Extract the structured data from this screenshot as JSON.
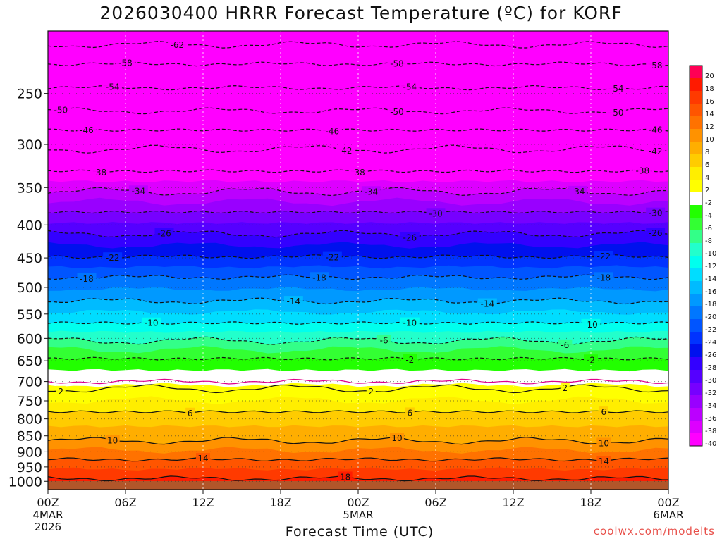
{
  "chart_data": {
    "type": "heatmap",
    "title": "2026030400 HRRR Forecast Temperature (ºC) for KORF",
    "xlabel": "Forecast Time (UTC)",
    "ylabel": "",
    "credit": "coolwx.com/modelts",
    "x_ticks": [
      {
        "hour": 0,
        "label": "00Z",
        "sub": [
          "4MAR",
          "2026"
        ]
      },
      {
        "hour": 6,
        "label": "06Z",
        "sub": []
      },
      {
        "hour": 12,
        "label": "12Z",
        "sub": []
      },
      {
        "hour": 18,
        "label": "18Z",
        "sub": []
      },
      {
        "hour": 24,
        "label": "00Z",
        "sub": [
          "5MAR"
        ]
      },
      {
        "hour": 30,
        "label": "06Z",
        "sub": []
      },
      {
        "hour": 36,
        "label": "12Z",
        "sub": []
      },
      {
        "hour": 42,
        "label": "18Z",
        "sub": []
      },
      {
        "hour": 48,
        "label": "00Z",
        "sub": [
          "6MAR"
        ]
      }
    ],
    "xlim_hours": [
      0,
      48
    ],
    "y_ticks_hpa": [
      250,
      300,
      350,
      400,
      450,
      500,
      550,
      600,
      650,
      700,
      750,
      800,
      850,
      900,
      950,
      1000
    ],
    "ylim_hpa": [
      200,
      1030
    ],
    "y_scale": "log-pressure (inverted)",
    "grid": "dotted",
    "colorbar": {
      "bins": [
        {
          "label": "20",
          "color": "#ff0055"
        },
        {
          "label": "18",
          "color": "#ff1a00"
        },
        {
          "label": "16",
          "color": "#ff3a00"
        },
        {
          "label": "14",
          "color": "#ff5500"
        },
        {
          "label": "12",
          "color": "#ff7200"
        },
        {
          "label": "10",
          "color": "#ff9200"
        },
        {
          "label": "8",
          "color": "#ffae00"
        },
        {
          "label": "6",
          "color": "#ffcc00"
        },
        {
          "label": "4",
          "color": "#ffee00"
        },
        {
          "label": "2",
          "color": "#ffff00"
        },
        {
          "label": "-2",
          "color": "#ffffff"
        },
        {
          "label": "-4",
          "color": "#22ff00"
        },
        {
          "label": "-6",
          "color": "#33ff33"
        },
        {
          "label": "-8",
          "color": "#33ff88"
        },
        {
          "label": "-10",
          "color": "#22ffcc"
        },
        {
          "label": "-12",
          "color": "#00ffee"
        },
        {
          "label": "-14",
          "color": "#00ddff"
        },
        {
          "label": "-16",
          "color": "#00bbff"
        },
        {
          "label": "-18",
          "color": "#0099ff"
        },
        {
          "label": "-20",
          "color": "#0077ff"
        },
        {
          "label": "-22",
          "color": "#0055ff"
        },
        {
          "label": "-24",
          "color": "#0033ff"
        },
        {
          "label": "-26",
          "color": "#0011ee"
        },
        {
          "label": "-28",
          "color": "#3300ff"
        },
        {
          "label": "-30",
          "color": "#5500ff"
        },
        {
          "label": "-32",
          "color": "#7700ff"
        },
        {
          "label": "-34",
          "color": "#9900ff"
        },
        {
          "label": "-36",
          "color": "#bb00ff"
        },
        {
          "label": "-38",
          "color": "#dd00ff"
        },
        {
          "label": "-40",
          "color": "#ff00ff"
        }
      ]
    },
    "contours": [
      {
        "value": -62,
        "label": "-62",
        "style": "dashed",
        "pressure_hpa": 210,
        "label_hours": [
          10
        ]
      },
      {
        "value": -58,
        "label": "-58",
        "style": "dashed",
        "pressure_hpa": 225,
        "label_hours": [
          6,
          27,
          47
        ]
      },
      {
        "value": -54,
        "label": "-54",
        "style": "dashed",
        "pressure_hpa": 245,
        "label_hours": [
          5,
          28,
          44
        ]
      },
      {
        "value": -50,
        "label": "-50",
        "style": "dashed",
        "pressure_hpa": 266,
        "label_hours": [
          1,
          27,
          44
        ]
      },
      {
        "value": -46,
        "label": "-46",
        "style": "dashed",
        "pressure_hpa": 285,
        "label_hours": [
          3,
          22,
          47
        ]
      },
      {
        "value": -42,
        "label": "-42",
        "style": "dashed",
        "pressure_hpa": 305,
        "label_hours": [
          23,
          47
        ]
      },
      {
        "value": -38,
        "label": "-38",
        "style": "dashed",
        "pressure_hpa": 330,
        "label_hours": [
          4,
          24,
          46
        ]
      },
      {
        "value": -34,
        "label": "-34",
        "style": "dashed",
        "pressure_hpa": 355,
        "label_hours": [
          7,
          25,
          41
        ]
      },
      {
        "value": -30,
        "label": "-30",
        "style": "dashed",
        "pressure_hpa": 382,
        "label_hours": [
          30,
          47
        ]
      },
      {
        "value": -26,
        "label": "-26",
        "style": "dashed",
        "pressure_hpa": 413,
        "label_hours": [
          9,
          28,
          47
        ]
      },
      {
        "value": -22,
        "label": "-22",
        "style": "dashed",
        "pressure_hpa": 448,
        "label_hours": [
          5,
          22,
          43
        ]
      },
      {
        "value": -18,
        "label": "-18",
        "style": "dashed",
        "pressure_hpa": 482,
        "label_hours": [
          3,
          21,
          43
        ]
      },
      {
        "value": -14,
        "label": "-14",
        "style": "dashed",
        "pressure_hpa": 525,
        "label_hours": [
          19,
          34
        ]
      },
      {
        "value": -10,
        "label": "-10",
        "style": "dashed",
        "pressure_hpa": 568,
        "label_hours": [
          8,
          28,
          42
        ]
      },
      {
        "value": -6,
        "label": "-6",
        "style": "dashed",
        "pressure_hpa": 605,
        "label_hours": [
          26,
          40
        ]
      },
      {
        "value": -2,
        "label": "-2",
        "style": "dashed",
        "pressure_hpa": 645,
        "label_hours": [
          28,
          42
        ]
      },
      {
        "value": 0,
        "label": "",
        "style": "magenta",
        "pressure_hpa": 700,
        "label_hours": []
      },
      {
        "value": 2,
        "label": "2",
        "style": "solid",
        "pressure_hpa": 718,
        "label_hours": [
          1,
          25,
          40
        ]
      },
      {
        "value": 6,
        "label": "6",
        "style": "solid",
        "pressure_hpa": 780,
        "label_hours": [
          11,
          28,
          43
        ]
      },
      {
        "value": 10,
        "label": "10",
        "style": "solid",
        "pressure_hpa": 865,
        "label_hours": [
          5,
          27,
          43
        ]
      },
      {
        "value": 14,
        "label": "14",
        "style": "solid",
        "pressure_hpa": 925,
        "label_hours": [
          12,
          43
        ]
      },
      {
        "value": 18,
        "label": "18",
        "style": "solid",
        "pressure_hpa": 990,
        "label_hours": [
          23
        ]
      }
    ],
    "label_text_tokens": [
      "-62",
      "-58",
      "-54",
      "-50",
      "-46",
      "-42",
      "-38",
      "-34",
      "-30",
      "-26",
      "-22",
      "-18",
      "-14",
      "-10",
      "-6",
      "-2",
      "2",
      "6",
      "10",
      "14",
      "18"
    ]
  }
}
